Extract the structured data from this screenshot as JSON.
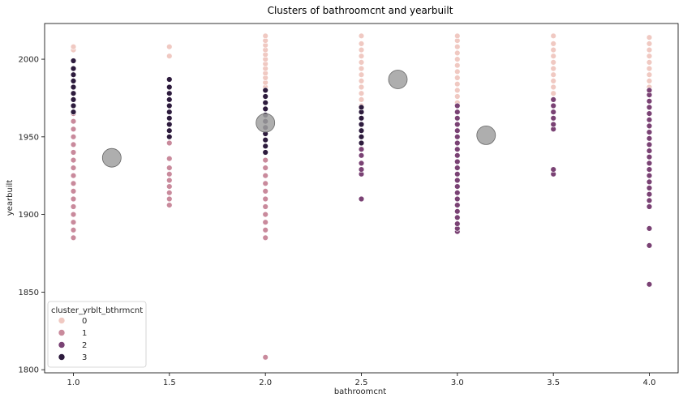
{
  "chart_data": {
    "type": "scatter",
    "title": "Clusters of bathroomcnt and yearbuilt",
    "xlabel": "bathroomcnt",
    "ylabel": "yearbuilt",
    "xlim": [
      0.85,
      4.15
    ],
    "ylim": [
      1798,
      2023
    ],
    "xticks": [
      1.0,
      1.5,
      2.0,
      2.5,
      3.0,
      3.5,
      4.0
    ],
    "xtick_labels": [
      "1.0",
      "1.5",
      "2.0",
      "2.5",
      "3.0",
      "3.5",
      "4.0"
    ],
    "yticks": [
      1800,
      1850,
      1900,
      1950,
      2000
    ],
    "ytick_labels": [
      "1800",
      "1850",
      "1900",
      "1950",
      "2000"
    ],
    "grid": false,
    "legend": {
      "title": "cluster_yrblt_bthrmcnt",
      "placement": "lower-left",
      "entries": [
        "0",
        "1",
        "2",
        "3"
      ]
    },
    "series": [
      {
        "name": "0",
        "color": "#f0c9c2",
        "points": [
          [
            1.0,
            2006
          ],
          [
            1.0,
            2008
          ],
          [
            1.5,
            2002
          ],
          [
            1.5,
            2008
          ],
          [
            2.0,
            1982
          ],
          [
            2.0,
            1985
          ],
          [
            2.0,
            1988
          ],
          [
            2.0,
            1991
          ],
          [
            2.0,
            1994
          ],
          [
            2.0,
            1997
          ],
          [
            2.0,
            2000
          ],
          [
            2.0,
            2003
          ],
          [
            2.0,
            2006
          ],
          [
            2.0,
            2009
          ],
          [
            2.0,
            2012
          ],
          [
            2.0,
            2015
          ],
          [
            2.5,
            1970
          ],
          [
            2.5,
            1974
          ],
          [
            2.5,
            1978
          ],
          [
            2.5,
            1982
          ],
          [
            2.5,
            1986
          ],
          [
            2.5,
            1990
          ],
          [
            2.5,
            1994
          ],
          [
            2.5,
            1998
          ],
          [
            2.5,
            2002
          ],
          [
            2.5,
            2006
          ],
          [
            2.5,
            2010
          ],
          [
            2.5,
            2015
          ],
          [
            3.0,
            1972
          ],
          [
            3.0,
            1976
          ],
          [
            3.0,
            1980
          ],
          [
            3.0,
            1984
          ],
          [
            3.0,
            1988
          ],
          [
            3.0,
            1992
          ],
          [
            3.0,
            1996
          ],
          [
            3.0,
            2000
          ],
          [
            3.0,
            2004
          ],
          [
            3.0,
            2008
          ],
          [
            3.0,
            2012
          ],
          [
            3.0,
            2015
          ],
          [
            3.5,
            1978
          ],
          [
            3.5,
            1982
          ],
          [
            3.5,
            1986
          ],
          [
            3.5,
            1990
          ],
          [
            3.5,
            1994
          ],
          [
            3.5,
            1998
          ],
          [
            3.5,
            2002
          ],
          [
            3.5,
            2006
          ],
          [
            3.5,
            2010
          ],
          [
            3.5,
            2015
          ],
          [
            4.0,
            1982
          ],
          [
            4.0,
            1986
          ],
          [
            4.0,
            1990
          ],
          [
            4.0,
            1994
          ],
          [
            4.0,
            1998
          ],
          [
            4.0,
            2002
          ],
          [
            4.0,
            2006
          ],
          [
            4.0,
            2010
          ],
          [
            4.0,
            2014
          ]
        ]
      },
      {
        "name": "1",
        "color": "#c98a9c",
        "points": [
          [
            1.0,
            1885
          ],
          [
            1.0,
            1890
          ],
          [
            1.0,
            1895
          ],
          [
            1.0,
            1900
          ],
          [
            1.0,
            1905
          ],
          [
            1.0,
            1910
          ],
          [
            1.0,
            1915
          ],
          [
            1.0,
            1920
          ],
          [
            1.0,
            1925
          ],
          [
            1.0,
            1930
          ],
          [
            1.0,
            1935
          ],
          [
            1.0,
            1940
          ],
          [
            1.0,
            1945
          ],
          [
            1.0,
            1950
          ],
          [
            1.0,
            1955
          ],
          [
            1.0,
            1960
          ],
          [
            1.0,
            1965
          ],
          [
            1.5,
            1906
          ],
          [
            1.5,
            1910
          ],
          [
            1.5,
            1914
          ],
          [
            1.5,
            1918
          ],
          [
            1.5,
            1922
          ],
          [
            1.5,
            1926
          ],
          [
            1.5,
            1930
          ],
          [
            1.5,
            1936
          ],
          [
            1.5,
            1946
          ],
          [
            2.0,
            1808
          ],
          [
            2.0,
            1885
          ],
          [
            2.0,
            1890
          ],
          [
            2.0,
            1895
          ],
          [
            2.0,
            1900
          ],
          [
            2.0,
            1905
          ],
          [
            2.0,
            1910
          ],
          [
            2.0,
            1915
          ],
          [
            2.0,
            1920
          ],
          [
            2.0,
            1925
          ],
          [
            2.0,
            1930
          ],
          [
            2.0,
            1935
          ],
          [
            2.0,
            1940
          ]
        ]
      },
      {
        "name": "2",
        "color": "#7a4274",
        "points": [
          [
            2.5,
            1910
          ],
          [
            2.5,
            1926
          ],
          [
            2.5,
            1929
          ],
          [
            2.5,
            1933
          ],
          [
            2.5,
            1938
          ],
          [
            2.5,
            1942
          ],
          [
            3.0,
            1889
          ],
          [
            3.0,
            1891
          ],
          [
            3.0,
            1894
          ],
          [
            3.0,
            1898
          ],
          [
            3.0,
            1902
          ],
          [
            3.0,
            1906
          ],
          [
            3.0,
            1910
          ],
          [
            3.0,
            1914
          ],
          [
            3.0,
            1918
          ],
          [
            3.0,
            1922
          ],
          [
            3.0,
            1926
          ],
          [
            3.0,
            1930
          ],
          [
            3.0,
            1934
          ],
          [
            3.0,
            1938
          ],
          [
            3.0,
            1942
          ],
          [
            3.0,
            1946
          ],
          [
            3.0,
            1950
          ],
          [
            3.0,
            1954
          ],
          [
            3.0,
            1958
          ],
          [
            3.0,
            1962
          ],
          [
            3.0,
            1966
          ],
          [
            3.0,
            1970
          ],
          [
            3.5,
            1926
          ],
          [
            3.5,
            1929
          ],
          [
            3.5,
            1955
          ],
          [
            3.5,
            1958
          ],
          [
            3.5,
            1962
          ],
          [
            3.5,
            1966
          ],
          [
            3.5,
            1970
          ],
          [
            3.5,
            1974
          ],
          [
            4.0,
            1855
          ],
          [
            4.0,
            1880
          ],
          [
            4.0,
            1891
          ],
          [
            4.0,
            1905
          ],
          [
            4.0,
            1909
          ],
          [
            4.0,
            1913
          ],
          [
            4.0,
            1917
          ],
          [
            4.0,
            1921
          ],
          [
            4.0,
            1925
          ],
          [
            4.0,
            1929
          ],
          [
            4.0,
            1933
          ],
          [
            4.0,
            1937
          ],
          [
            4.0,
            1941
          ],
          [
            4.0,
            1945
          ],
          [
            4.0,
            1949
          ],
          [
            4.0,
            1953
          ],
          [
            4.0,
            1957
          ],
          [
            4.0,
            1961
          ],
          [
            4.0,
            1965
          ],
          [
            4.0,
            1969
          ],
          [
            4.0,
            1973
          ],
          [
            4.0,
            1977
          ],
          [
            4.0,
            1980
          ]
        ]
      },
      {
        "name": "3",
        "color": "#2d1b3d",
        "points": [
          [
            1.0,
            1966
          ],
          [
            1.0,
            1970
          ],
          [
            1.0,
            1974
          ],
          [
            1.0,
            1978
          ],
          [
            1.0,
            1982
          ],
          [
            1.0,
            1986
          ],
          [
            1.0,
            1990
          ],
          [
            1.0,
            1994
          ],
          [
            1.0,
            1999
          ],
          [
            1.5,
            1950
          ],
          [
            1.5,
            1954
          ],
          [
            1.5,
            1958
          ],
          [
            1.5,
            1962
          ],
          [
            1.5,
            1966
          ],
          [
            1.5,
            1970
          ],
          [
            1.5,
            1974
          ],
          [
            1.5,
            1978
          ],
          [
            1.5,
            1982
          ],
          [
            1.5,
            1987
          ],
          [
            2.0,
            1940
          ],
          [
            2.0,
            1944
          ],
          [
            2.0,
            1948
          ],
          [
            2.0,
            1952
          ],
          [
            2.0,
            1956
          ],
          [
            2.0,
            1960
          ],
          [
            2.0,
            1964
          ],
          [
            2.0,
            1968
          ],
          [
            2.0,
            1972
          ],
          [
            2.0,
            1976
          ],
          [
            2.0,
            1980
          ],
          [
            2.5,
            1946
          ],
          [
            2.5,
            1950
          ],
          [
            2.5,
            1954
          ],
          [
            2.5,
            1958
          ],
          [
            2.5,
            1962
          ],
          [
            2.5,
            1966
          ],
          [
            2.5,
            1969
          ]
        ]
      }
    ],
    "centroids": {
      "color": "#a0a0a0",
      "points": [
        [
          1.2,
          1936.5
        ],
        [
          2.0,
          1959
        ],
        [
          2.69,
          1987
        ],
        [
          3.15,
          1951
        ]
      ]
    }
  }
}
